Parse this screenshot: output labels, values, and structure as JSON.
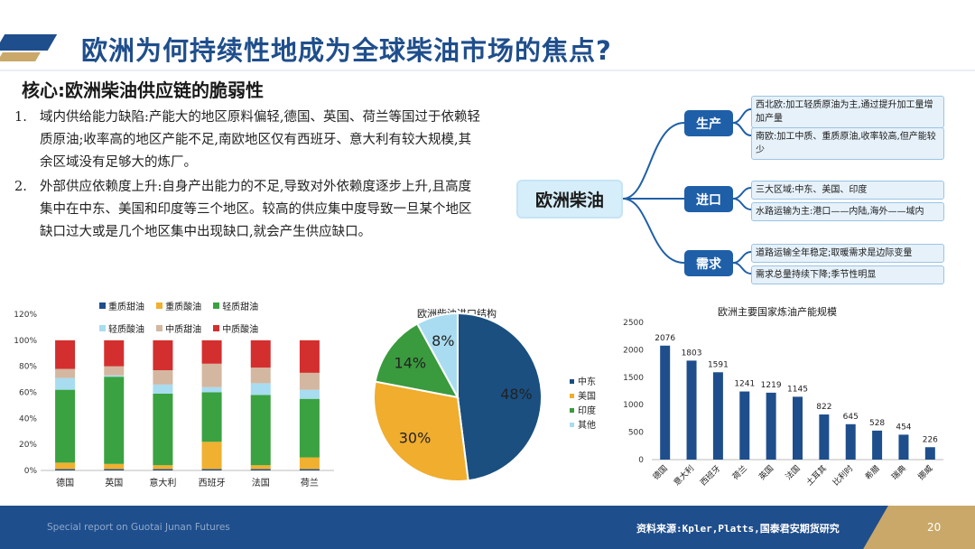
{
  "header": {
    "title": "欧洲为何持续性地成为全球柴油市场的焦点?",
    "subtitle": "核心:欧洲柴油供应链的脆弱性"
  },
  "points": [
    {
      "num": "1.",
      "text": "域内供给能力缺陷:产能大的地区原料偏轻,德国、英国、荷兰等国过于依赖轻质原油;收率高的地区产能不足,南欧地区仅有西班牙、意大利有较大规模,其余区域没有足够大的炼厂。"
    },
    {
      "num": "2.",
      "text": "外部供应依赖度上升:自身产出能力的不足,导致对外依赖度逐步上升,且高度集中在中东、美国和印度等三个地区。较高的供应集中度导致一旦某个地区缺口过大或是几个地区集中出现缺口,就会产生供应缺口。"
    }
  ],
  "mindmap": {
    "root": "欧洲柴油",
    "nodes": [
      {
        "label": "生产",
        "leaves": [
          "西北欧:加工轻质原油为主,通过提升加工量增加产量",
          "南欧:加工中质、重质原油,收率较高,但产能较少"
        ]
      },
      {
        "label": "进口",
        "leaves": [
          "三大区域:中东、美国、印度",
          "水路运输为主:港口——内陆,海外——域内"
        ]
      },
      {
        "label": "需求",
        "leaves": [
          "道路运输全年稳定;取暖需求是边际变量",
          "需求总量持续下降;季节性明显"
        ]
      }
    ]
  },
  "colors": {
    "brand": "#1f4e8c",
    "gold": "#c9a86a",
    "node": "#1f5fa8",
    "bar": "#1f4e8c"
  },
  "chart_data": [
    {
      "type": "bar",
      "stacked": true,
      "title": "",
      "categories": [
        "德国",
        "英国",
        "意大利",
        "西班牙",
        "法国",
        "荷兰"
      ],
      "series": [
        {
          "name": "重质甜油",
          "color": "#1f4e8c",
          "values": [
            0.01,
            0.01,
            0.01,
            0.01,
            0.01,
            0.01
          ]
        },
        {
          "name": "重质酸油",
          "color": "#f0b030",
          "values": [
            0.05,
            0.04,
            0.03,
            0.21,
            0.03,
            0.09
          ]
        },
        {
          "name": "轻质甜油",
          "color": "#3aa240",
          "values": [
            0.56,
            0.67,
            0.55,
            0.38,
            0.54,
            0.45
          ]
        },
        {
          "name": "轻质酸油",
          "color": "#a8dcf0",
          "values": [
            0.09,
            0.01,
            0.07,
            0.04,
            0.09,
            0.07
          ]
        },
        {
          "name": "中质甜油",
          "color": "#d4b7a0",
          "values": [
            0.07,
            0.07,
            0.11,
            0.18,
            0.12,
            0.13
          ]
        },
        {
          "name": "中质酸油",
          "color": "#d32f2f",
          "values": [
            0.22,
            0.2,
            0.23,
            0.18,
            0.21,
            0.25
          ]
        }
      ],
      "ylim": [
        0,
        1.2
      ],
      "ytick_labels": [
        "0%",
        "20%",
        "40%",
        "60%",
        "80%",
        "100%",
        "120%"
      ],
      "legend": "top"
    },
    {
      "type": "pie",
      "title": "欧洲柴油进口结构",
      "slices": [
        {
          "name": "中东",
          "value": 48,
          "label": "48%",
          "color": "#1a4f80"
        },
        {
          "name": "美国",
          "value": 30,
          "label": "30%",
          "color": "#f0ad2e"
        },
        {
          "name": "印度",
          "value": 14,
          "label": "14%",
          "color": "#3a9a3e"
        },
        {
          "name": "其他",
          "value": 8,
          "label": "8%",
          "color": "#a9dcf0"
        }
      ],
      "legend": "right"
    },
    {
      "type": "bar",
      "title": "欧洲主要国家炼油产能规模",
      "categories": [
        "德国",
        "意大利",
        "西班牙",
        "荷兰",
        "英国",
        "法国",
        "土耳其",
        "比利时",
        "希腊",
        "瑞典",
        "挪威"
      ],
      "values": [
        2076,
        1803,
        1591,
        1241,
        1219,
        1145,
        822,
        645,
        528,
        454,
        226
      ],
      "value_labels": [
        "2076",
        "1803",
        "1591",
        "1241",
        "1219",
        "1145",
        "822",
        "645",
        "528",
        "454",
        "226"
      ],
      "ylim": [
        0,
        2500
      ],
      "ytick_labels": [
        "0",
        "500",
        "1000",
        "1500",
        "2000",
        "2500"
      ]
    }
  ],
  "footer": {
    "left": "Special report on Guotai Junan Futures",
    "source": "资料来源:Kpler,Platts,国泰君安期货研究",
    "page": "20"
  }
}
